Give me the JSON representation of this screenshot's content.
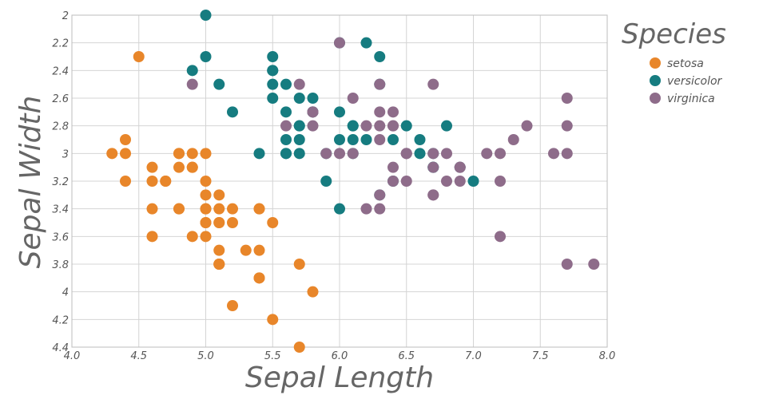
{
  "chart_data": {
    "type": "scatter",
    "title": "",
    "xlabel": "Sepal Length",
    "ylabel": "Sepal Width",
    "xlim": [
      4.0,
      8.0
    ],
    "ylim": [
      2.0,
      4.4
    ],
    "y_inverted": true,
    "grid": true,
    "legend_title": "Species",
    "legend_position": "right",
    "x_ticks": [
      "4.0",
      "4.5",
      "5.0",
      "5.5",
      "6.0",
      "6.5",
      "7.0",
      "7.5",
      "8.0"
    ],
    "y_ticks": [
      "2",
      "2.2",
      "2.4",
      "2.6",
      "2.8",
      "3",
      "3.2",
      "3.4",
      "3.6",
      "3.8",
      "4",
      "4.2",
      "4.4"
    ],
    "series": [
      {
        "name": "setosa",
        "color": "#E8862A",
        "points": [
          [
            5.1,
            3.5
          ],
          [
            4.9,
            3.0
          ],
          [
            4.7,
            3.2
          ],
          [
            4.6,
            3.1
          ],
          [
            5.0,
            3.6
          ],
          [
            5.4,
            3.9
          ],
          [
            4.6,
            3.4
          ],
          [
            5.0,
            3.4
          ],
          [
            4.4,
            2.9
          ],
          [
            4.9,
            3.1
          ],
          [
            5.4,
            3.7
          ],
          [
            4.8,
            3.4
          ],
          [
            4.8,
            3.0
          ],
          [
            4.3,
            3.0
          ],
          [
            5.8,
            4.0
          ],
          [
            5.7,
            4.4
          ],
          [
            5.4,
            3.9
          ],
          [
            5.1,
            3.5
          ],
          [
            5.7,
            3.8
          ],
          [
            5.1,
            3.8
          ],
          [
            5.4,
            3.4
          ],
          [
            5.1,
            3.7
          ],
          [
            4.6,
            3.6
          ],
          [
            5.1,
            3.3
          ],
          [
            4.8,
            3.4
          ],
          [
            5.0,
            3.0
          ],
          [
            5.0,
            3.4
          ],
          [
            5.2,
            3.5
          ],
          [
            5.2,
            3.4
          ],
          [
            4.7,
            3.2
          ],
          [
            4.8,
            3.1
          ],
          [
            5.4,
            3.4
          ],
          [
            5.2,
            4.1
          ],
          [
            5.5,
            4.2
          ],
          [
            4.9,
            3.1
          ],
          [
            5.0,
            3.2
          ],
          [
            5.5,
            3.5
          ],
          [
            4.9,
            3.6
          ],
          [
            4.4,
            3.0
          ],
          [
            5.1,
            3.4
          ],
          [
            5.0,
            3.5
          ],
          [
            4.5,
            2.3
          ],
          [
            4.4,
            3.2
          ],
          [
            5.0,
            3.5
          ],
          [
            5.1,
            3.8
          ],
          [
            4.8,
            3.0
          ],
          [
            5.1,
            3.8
          ],
          [
            4.6,
            3.2
          ],
          [
            5.3,
            3.7
          ],
          [
            5.0,
            3.3
          ]
        ]
      },
      {
        "name": "versicolor",
        "color": "#167C80",
        "points": [
          [
            7.0,
            3.2
          ],
          [
            6.4,
            3.2
          ],
          [
            6.9,
            3.1
          ],
          [
            5.5,
            2.3
          ],
          [
            6.5,
            2.8
          ],
          [
            5.7,
            2.8
          ],
          [
            6.3,
            3.3
          ],
          [
            4.9,
            2.4
          ],
          [
            6.6,
            2.9
          ],
          [
            5.2,
            2.7
          ],
          [
            5.0,
            2.0
          ],
          [
            5.9,
            3.0
          ],
          [
            6.0,
            2.2
          ],
          [
            6.1,
            2.9
          ],
          [
            5.6,
            2.9
          ],
          [
            6.7,
            3.1
          ],
          [
            5.6,
            3.0
          ],
          [
            5.8,
            2.7
          ],
          [
            6.2,
            2.2
          ],
          [
            5.6,
            2.5
          ],
          [
            5.9,
            3.2
          ],
          [
            6.1,
            2.8
          ],
          [
            6.3,
            2.5
          ],
          [
            6.1,
            2.8
          ],
          [
            6.4,
            2.9
          ],
          [
            6.6,
            3.0
          ],
          [
            6.8,
            2.8
          ],
          [
            6.7,
            3.0
          ],
          [
            6.0,
            2.9
          ],
          [
            5.7,
            2.6
          ],
          [
            5.5,
            2.4
          ],
          [
            5.5,
            2.4
          ],
          [
            5.8,
            2.7
          ],
          [
            6.0,
            2.7
          ],
          [
            5.4,
            3.0
          ],
          [
            6.0,
            3.4
          ],
          [
            6.7,
            3.1
          ],
          [
            6.3,
            2.3
          ],
          [
            5.6,
            3.0
          ],
          [
            5.5,
            2.5
          ],
          [
            5.5,
            2.6
          ],
          [
            6.1,
            3.0
          ],
          [
            5.8,
            2.6
          ],
          [
            5.0,
            2.3
          ],
          [
            5.6,
            2.7
          ],
          [
            5.7,
            3.0
          ],
          [
            5.7,
            2.9
          ],
          [
            6.2,
            2.9
          ],
          [
            5.1,
            2.5
          ],
          [
            5.7,
            2.8
          ]
        ]
      },
      {
        "name": "virginica",
        "color": "#8E6C8A",
        "points": [
          [
            6.3,
            3.3
          ],
          [
            5.8,
            2.7
          ],
          [
            7.1,
            3.0
          ],
          [
            6.3,
            2.9
          ],
          [
            6.5,
            3.0
          ],
          [
            7.6,
            3.0
          ],
          [
            4.9,
            2.5
          ],
          [
            7.3,
            2.9
          ],
          [
            6.7,
            2.5
          ],
          [
            7.2,
            3.6
          ],
          [
            6.5,
            3.2
          ],
          [
            6.4,
            2.7
          ],
          [
            6.8,
            3.0
          ],
          [
            5.7,
            2.5
          ],
          [
            5.8,
            2.8
          ],
          [
            6.4,
            3.2
          ],
          [
            6.5,
            3.0
          ],
          [
            7.7,
            3.8
          ],
          [
            7.7,
            2.6
          ],
          [
            6.0,
            2.2
          ],
          [
            6.9,
            3.2
          ],
          [
            5.6,
            2.8
          ],
          [
            7.7,
            2.8
          ],
          [
            6.3,
            2.7
          ],
          [
            6.7,
            3.3
          ],
          [
            7.2,
            3.2
          ],
          [
            6.2,
            2.8
          ],
          [
            6.1,
            3.0
          ],
          [
            6.4,
            2.8
          ],
          [
            7.2,
            3.0
          ],
          [
            7.4,
            2.8
          ],
          [
            7.9,
            3.8
          ],
          [
            6.4,
            2.8
          ],
          [
            6.3,
            2.8
          ],
          [
            6.1,
            2.6
          ],
          [
            7.7,
            3.0
          ],
          [
            6.3,
            3.4
          ],
          [
            6.4,
            3.1
          ],
          [
            6.0,
            3.0
          ],
          [
            6.9,
            3.1
          ],
          [
            6.7,
            3.1
          ],
          [
            6.9,
            3.1
          ],
          [
            5.8,
            2.7
          ],
          [
            6.8,
            3.2
          ],
          [
            6.7,
            3.3
          ],
          [
            6.7,
            3.0
          ],
          [
            6.3,
            2.5
          ],
          [
            6.5,
            3.0
          ],
          [
            6.2,
            3.4
          ],
          [
            5.9,
            3.0
          ]
        ]
      }
    ]
  }
}
